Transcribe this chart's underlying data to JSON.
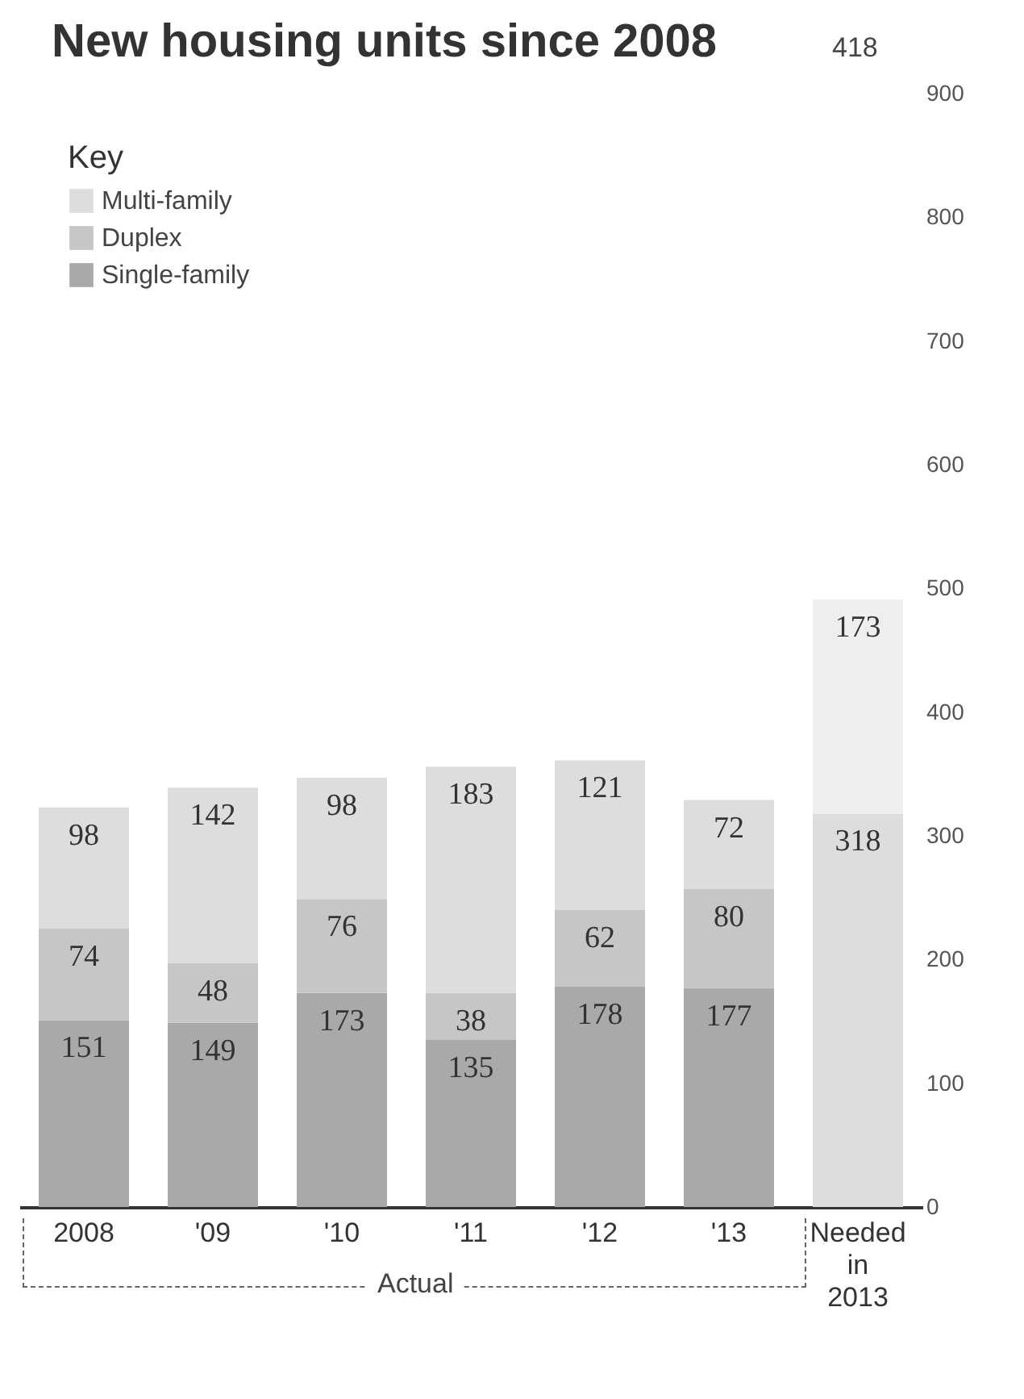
{
  "chart_data": {
    "type": "bar",
    "title": "New housing units since 2008",
    "legend_title": "Key",
    "categories": [
      "2008",
      "'09",
      "'10",
      "'11",
      "'12",
      "'13",
      "Needed in 2013"
    ],
    "series": [
      {
        "name": "Single-family",
        "color": "#a9a9a9",
        "values": [
          151,
          149,
          173,
          135,
          178,
          177,
          null
        ]
      },
      {
        "name": "Duplex",
        "color": "#c6c6c6",
        "values": [
          74,
          48,
          76,
          38,
          62,
          80,
          null
        ]
      },
      {
        "name": "Multi-family",
        "color": "#dddddd",
        "values": [
          98,
          142,
          98,
          183,
          121,
          72,
          318
        ]
      },
      {
        "color": "#eeeeee",
        "values": [
          null,
          null,
          null,
          null,
          null,
          null,
          173
        ]
      }
    ],
    "stacked": true,
    "data_labels": true,
    "legend": "top left",
    "grid": false,
    "ylim": [
      0,
      900
    ],
    "yticks": [
      0,
      100,
      200,
      300,
      400,
      500,
      600,
      700,
      800,
      900
    ],
    "annotations": [
      "418",
      "Actual"
    ]
  }
}
